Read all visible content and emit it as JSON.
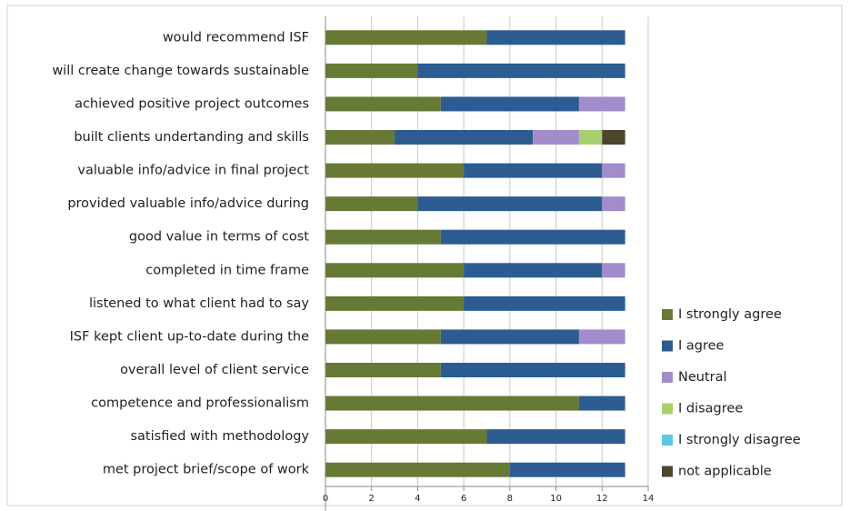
{
  "chart_data": {
    "type": "stacked_bar_horizontal",
    "categories": [
      "would recommend ISF",
      "will create change towards sustainable",
      "achieved positive project outcomes",
      "built clients undertanding and skills",
      "valuable info/advice in final project",
      "provided valuable info/advice during",
      "good value in terms of cost",
      "completed in time frame",
      "listened to what client had to say",
      "ISF kept client up-to-date during the",
      "overall level of client service",
      "competence and professionalism",
      "satisfied with methodology",
      "met project brief/scope of work"
    ],
    "series": [
      {
        "name": "I strongly agree",
        "color": "#667a35",
        "values": [
          7,
          4,
          5,
          3,
          6,
          4,
          5,
          6,
          6,
          5,
          5,
          11,
          7,
          8
        ]
      },
      {
        "name": "I agree",
        "color": "#2c5c91",
        "values": [
          6,
          9,
          6,
          6,
          6,
          8,
          8,
          6,
          7,
          6,
          8,
          2,
          6,
          5
        ]
      },
      {
        "name": "Neutral",
        "color": "#a38ccb",
        "values": [
          0,
          0,
          2,
          2,
          1,
          1,
          0,
          1,
          0,
          2,
          0,
          0,
          0,
          0
        ]
      },
      {
        "name": "I disagree",
        "color": "#a9d06f",
        "values": [
          0,
          0,
          0,
          1,
          0,
          0,
          0,
          0,
          0,
          0,
          0,
          0,
          0,
          0
        ]
      },
      {
        "name": "I strongly disagree",
        "color": "#5cc8e8",
        "values": [
          0,
          0,
          0,
          0,
          0,
          0,
          0,
          0,
          0,
          0,
          0,
          0,
          0,
          0
        ]
      },
      {
        "name": "not applicable",
        "color": "#4e452f",
        "values": [
          0,
          0,
          0,
          1,
          0,
          0,
          0,
          0,
          0,
          0,
          0,
          0,
          0,
          0
        ]
      }
    ],
    "xlim": [
      0,
      14
    ],
    "xticks": [
      0,
      2,
      4,
      6,
      8,
      10,
      12,
      14
    ],
    "grid": true,
    "legend": "right"
  }
}
